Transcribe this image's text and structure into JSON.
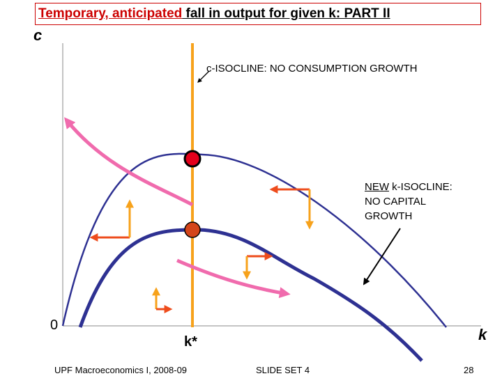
{
  "title": {
    "part1": "Temporary, anticipated",
    "part2": " fall in output for given k: PART II"
  },
  "axes": {
    "y_label": "c",
    "x_label": "k",
    "origin_label": "0",
    "kstar_label": "k*"
  },
  "labels": {
    "c_isocline": "c-ISOCLINE: NO CONSUMPTION GROWTH",
    "new_word": "NEW",
    "k_isocline_rest1": " k-ISOCLINE:",
    "k_isocline_line2": "NO CAPITAL",
    "k_isocline_line3": "GROWTH"
  },
  "footer": {
    "left": "UPF Macroeconomics I, 2008-09",
    "middle": "SLIDE SET 4",
    "page": "28"
  },
  "colors": {
    "old_k_isocline": "#2e3192",
    "new_k_isocline": "#2e3192",
    "c_isocline": "#f7a21b",
    "path_arrows": "#f06bad",
    "flow_arrows_h": "#ee4c1c",
    "flow_arrows_v": "#f7a21b",
    "steady_state_old": "#e3001b",
    "steady_state_new": "#d4451a"
  }
}
